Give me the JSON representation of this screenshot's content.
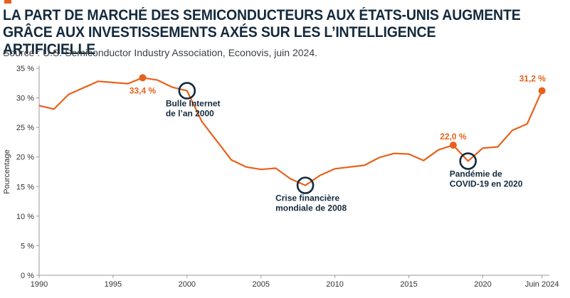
{
  "header": {
    "title_line1": "LA PART DE MARCHÉ DES SEMICONDUCTEURS AUX ÉTATS-UNIS AUGMENTE",
    "title_line2": "GRÂCE AUX INVESTISSEMENTS AXÉS SUR LES L’INTELLIGENCE ARTIFICIELLE",
    "source": "Source : U.S. Semiconductor Industry Association, Econovis, juin 2024."
  },
  "colors": {
    "line": "#e8611a",
    "circle": "#142a3d",
    "axis": "#999999",
    "accent": "#e8611a"
  },
  "chart_data": {
    "type": "line",
    "ylabel": "Pourcentage",
    "ylim": [
      0,
      35
    ],
    "xlim": [
      1990,
      2024.5
    ],
    "yticks": [
      {
        "v": 0,
        "label": "0 %"
      },
      {
        "v": 5,
        "label": "5 %"
      },
      {
        "v": 10,
        "label": "10 %"
      },
      {
        "v": 15,
        "label": "15 %"
      },
      {
        "v": 20,
        "label": "20 %"
      },
      {
        "v": 25,
        "label": "25 %"
      },
      {
        "v": 30,
        "label": "30 %"
      },
      {
        "v": 35,
        "label": "35 %"
      }
    ],
    "xticks": [
      {
        "v": 1990,
        "label": "1990"
      },
      {
        "v": 1995,
        "label": "1995"
      },
      {
        "v": 2000,
        "label": "2000"
      },
      {
        "v": 2005,
        "label": "2005"
      },
      {
        "v": 2010,
        "label": "2010"
      },
      {
        "v": 2015,
        "label": "2015"
      },
      {
        "v": 2020,
        "label": "2020"
      },
      {
        "v": 2024,
        "label": "Juin 2024"
      }
    ],
    "x": [
      1990,
      1991,
      1992,
      1994,
      1996,
      1997,
      1998,
      1999,
      2000,
      2001,
      2003,
      2004,
      2005,
      2006,
      2007,
      2008,
      2009,
      2010,
      2011,
      2012,
      2013,
      2014,
      2015,
      2016,
      2017,
      2018,
      2019,
      2020,
      2021,
      2022,
      2023,
      2024
    ],
    "values": [
      28.7,
      28.1,
      30.6,
      32.8,
      32.4,
      33.4,
      33.0,
      31.8,
      31.2,
      26.0,
      19.5,
      18.3,
      17.9,
      18.1,
      16.3,
      15.2,
      16.9,
      18.0,
      18.3,
      18.6,
      19.9,
      20.6,
      20.5,
      19.4,
      21.2,
      22.0,
      19.3,
      21.5,
      21.7,
      24.5,
      25.6,
      31.2
    ],
    "highlight_points": [
      {
        "x": 1997,
        "y": 33.4,
        "label": "33,4 %"
      },
      {
        "x": 2018,
        "y": 22.0,
        "label": "22,0 %"
      },
      {
        "x": 2024,
        "y": 31.2,
        "label": "31,2 %"
      }
    ],
    "annotations": [
      {
        "x": 2000,
        "y": 31.2,
        "lines": [
          "Bulle Internet",
          "de l’an 2000"
        ]
      },
      {
        "x": 2008,
        "y": 15.2,
        "lines": [
          "Crise financière",
          "mondiale de 2008"
        ]
      },
      {
        "x": 2019,
        "y": 19.3,
        "lines": [
          "Pandémie de",
          "COVID-19 en 2020"
        ]
      }
    ]
  }
}
